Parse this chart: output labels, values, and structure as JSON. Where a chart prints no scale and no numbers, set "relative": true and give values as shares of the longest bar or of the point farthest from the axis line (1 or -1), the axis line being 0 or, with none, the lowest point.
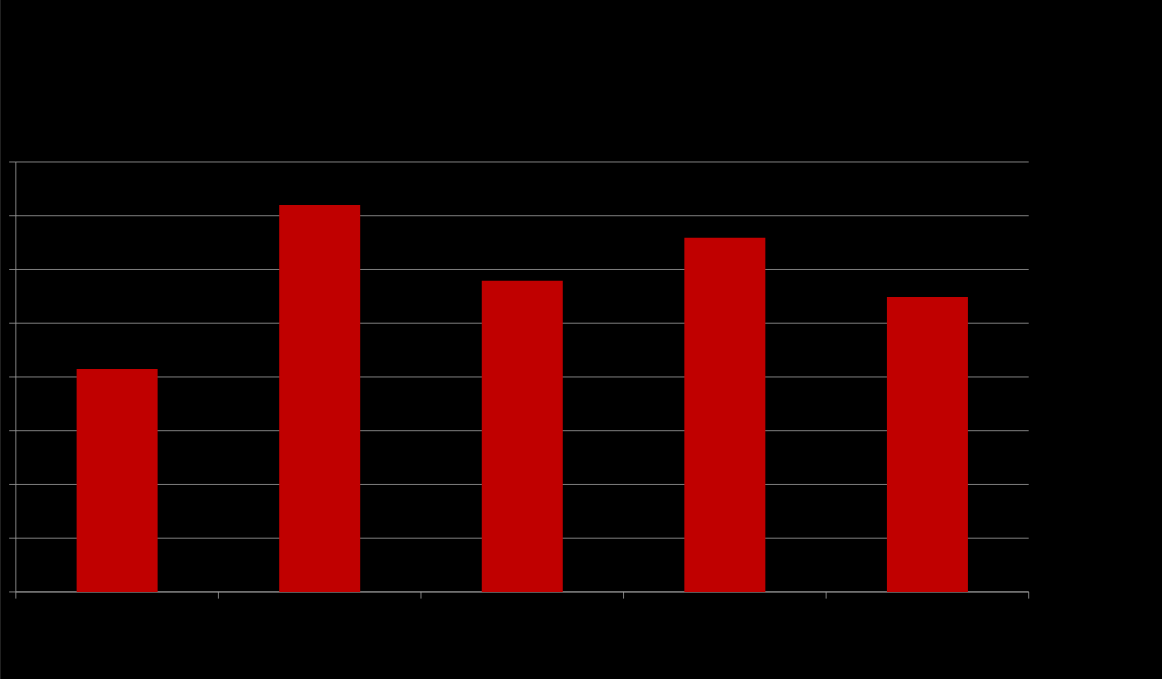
{
  "chart_data": {
    "type": "bar",
    "relative": true,
    "categories": [
      null,
      null,
      null,
      null,
      null
    ],
    "values": [
      0.576,
      1,
      0.804,
      0.915,
      0.762
    ],
    "color": "#c00000",
    "grid": "y"
  }
}
